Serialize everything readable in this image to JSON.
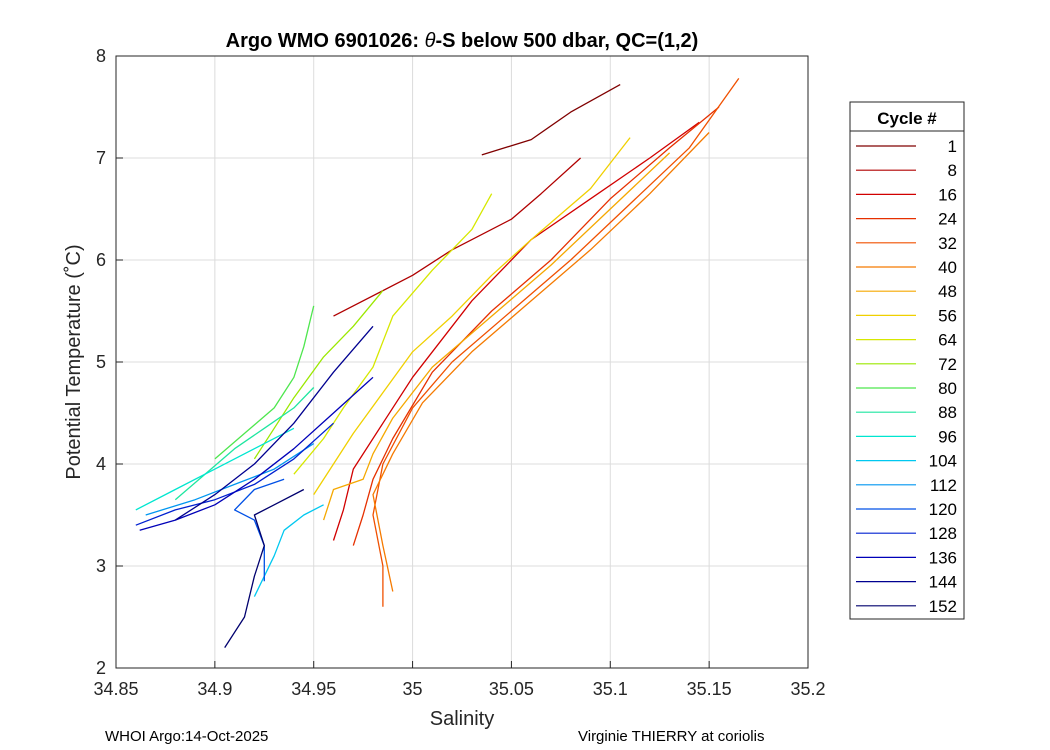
{
  "chart_data": {
    "type": "line",
    "title_prefix": "Argo WMO 6901026: ",
    "title_theta": "θ",
    "title_suffix": "-S below 500 dbar,  QC=(1,2)",
    "xlabel": "Salinity",
    "ylabel": "Potential Temperature (˚C)",
    "xlim": [
      34.85,
      35.2
    ],
    "ylim": [
      2,
      8
    ],
    "xticks": [
      "34.85",
      "34.9",
      "34.95",
      "35",
      "35.05",
      "35.1",
      "35.15",
      "35.2"
    ],
    "yticks": [
      "2",
      "3",
      "4",
      "5",
      "6",
      "7",
      "8"
    ],
    "grid": true,
    "legend": {
      "title": "Cycle #",
      "position": "outside-right",
      "entries": [
        "1",
        "8",
        "16",
        "24",
        "32",
        "40",
        "48",
        "56",
        "64",
        "72",
        "80",
        "88",
        "96",
        "104",
        "112",
        "120",
        "128",
        "136",
        "144",
        "152"
      ]
    },
    "series": [
      {
        "name": "1",
        "color": "#800000",
        "points": [
          [
            35.035,
            7.03
          ],
          [
            35.06,
            7.18
          ],
          [
            35.08,
            7.45
          ],
          [
            35.105,
            7.72
          ]
        ]
      },
      {
        "name": "8",
        "color": "#b00000",
        "points": [
          [
            34.96,
            5.45
          ],
          [
            35.0,
            5.85
          ],
          [
            35.02,
            6.1
          ],
          [
            35.05,
            6.4
          ],
          [
            35.065,
            6.65
          ],
          [
            35.085,
            7.0
          ]
        ]
      },
      {
        "name": "16",
        "color": "#d10000",
        "points": [
          [
            34.96,
            3.25
          ],
          [
            34.965,
            3.55
          ],
          [
            34.97,
            3.95
          ],
          [
            34.985,
            4.4
          ],
          [
            35.0,
            4.85
          ],
          [
            35.03,
            5.6
          ],
          [
            35.06,
            6.2
          ],
          [
            35.09,
            6.6
          ],
          [
            35.12,
            7.0
          ],
          [
            35.145,
            7.35
          ]
        ]
      },
      {
        "name": "24",
        "color": "#e63000",
        "points": [
          [
            34.97,
            3.2
          ],
          [
            34.975,
            3.5
          ],
          [
            34.98,
            3.85
          ],
          [
            34.99,
            4.25
          ],
          [
            35.01,
            4.9
          ],
          [
            35.04,
            5.5
          ],
          [
            35.07,
            6.0
          ],
          [
            35.1,
            6.6
          ],
          [
            35.13,
            7.1
          ],
          [
            35.155,
            7.5
          ]
        ]
      },
      {
        "name": "32",
        "color": "#f05000",
        "points": [
          [
            34.985,
            2.6
          ],
          [
            34.985,
            3.0
          ],
          [
            34.98,
            3.5
          ],
          [
            34.985,
            4.0
          ],
          [
            35.0,
            4.55
          ],
          [
            35.02,
            5.0
          ],
          [
            35.05,
            5.5
          ],
          [
            35.08,
            6.0
          ],
          [
            35.11,
            6.55
          ],
          [
            35.14,
            7.1
          ],
          [
            35.165,
            7.78
          ]
        ]
      },
      {
        "name": "40",
        "color": "#f57a00",
        "points": [
          [
            34.99,
            2.75
          ],
          [
            34.985,
            3.2
          ],
          [
            34.98,
            3.7
          ],
          [
            34.99,
            4.1
          ],
          [
            35.005,
            4.6
          ],
          [
            35.03,
            5.1
          ],
          [
            35.06,
            5.6
          ],
          [
            35.09,
            6.1
          ],
          [
            35.12,
            6.65
          ],
          [
            35.15,
            7.25
          ]
        ]
      },
      {
        "name": "48",
        "color": "#f5a800",
        "points": [
          [
            34.955,
            3.45
          ],
          [
            34.96,
            3.75
          ],
          [
            34.975,
            3.85
          ],
          [
            34.98,
            4.1
          ],
          [
            34.99,
            4.45
          ],
          [
            35.01,
            4.95
          ],
          [
            35.04,
            5.45
          ],
          [
            35.07,
            5.95
          ],
          [
            35.1,
            6.5
          ],
          [
            35.13,
            7.05
          ]
        ]
      },
      {
        "name": "56",
        "color": "#f0d000",
        "points": [
          [
            34.95,
            3.7
          ],
          [
            34.96,
            4.0
          ],
          [
            34.97,
            4.3
          ],
          [
            34.985,
            4.7
          ],
          [
            35.0,
            5.1
          ],
          [
            35.02,
            5.45
          ],
          [
            35.04,
            5.85
          ],
          [
            35.06,
            6.2
          ],
          [
            35.09,
            6.7
          ],
          [
            35.11,
            7.2
          ]
        ]
      },
      {
        "name": "64",
        "color": "#d6e800",
        "points": [
          [
            34.94,
            3.9
          ],
          [
            34.955,
            4.25
          ],
          [
            34.965,
            4.55
          ],
          [
            34.98,
            4.95
          ],
          [
            34.99,
            5.45
          ],
          [
            35.01,
            5.9
          ],
          [
            35.03,
            6.3
          ],
          [
            35.04,
            6.65
          ]
        ]
      },
      {
        "name": "72",
        "color": "#9be800",
        "points": [
          [
            34.92,
            4.05
          ],
          [
            34.93,
            4.35
          ],
          [
            34.94,
            4.65
          ],
          [
            34.955,
            5.05
          ],
          [
            34.97,
            5.35
          ],
          [
            34.985,
            5.7
          ]
        ]
      },
      {
        "name": "80",
        "color": "#4ee64e",
        "points": [
          [
            34.9,
            4.05
          ],
          [
            34.915,
            4.3
          ],
          [
            34.93,
            4.55
          ],
          [
            34.94,
            4.85
          ],
          [
            34.945,
            5.15
          ],
          [
            34.95,
            5.55
          ]
        ]
      },
      {
        "name": "88",
        "color": "#1ee6a0",
        "points": [
          [
            34.88,
            3.65
          ],
          [
            34.895,
            3.9
          ],
          [
            34.91,
            4.15
          ],
          [
            34.925,
            4.35
          ],
          [
            34.94,
            4.55
          ],
          [
            34.95,
            4.75
          ]
        ]
      },
      {
        "name": "96",
        "color": "#00e6d0",
        "points": [
          [
            34.86,
            3.55
          ],
          [
            34.88,
            3.75
          ],
          [
            34.9,
            3.95
          ],
          [
            34.92,
            4.15
          ],
          [
            34.94,
            4.35
          ]
        ]
      },
      {
        "name": "104",
        "color": "#00c8f0",
        "points": [
          [
            34.92,
            2.7
          ],
          [
            34.93,
            3.1
          ],
          [
            34.935,
            3.35
          ],
          [
            34.945,
            3.5
          ],
          [
            34.955,
            3.6
          ]
        ]
      },
      {
        "name": "112",
        "color": "#0096f0",
        "points": [
          [
            34.865,
            3.5
          ],
          [
            34.89,
            3.65
          ],
          [
            34.91,
            3.8
          ],
          [
            34.93,
            3.95
          ],
          [
            34.95,
            4.2
          ]
        ]
      },
      {
        "name": "120",
        "color": "#0050e6",
        "points": [
          [
            34.925,
            2.85
          ],
          [
            34.925,
            3.2
          ],
          [
            34.92,
            3.45
          ],
          [
            34.91,
            3.55
          ],
          [
            34.92,
            3.75
          ],
          [
            34.935,
            3.85
          ]
        ]
      },
      {
        "name": "128",
        "color": "#0020d0",
        "points": [
          [
            34.86,
            3.4
          ],
          [
            34.88,
            3.55
          ],
          [
            34.9,
            3.65
          ],
          [
            34.92,
            3.8
          ],
          [
            34.94,
            4.05
          ],
          [
            34.96,
            4.4
          ]
        ]
      },
      {
        "name": "136",
        "color": "#0000b8",
        "points": [
          [
            34.862,
            3.35
          ],
          [
            34.88,
            3.45
          ],
          [
            34.9,
            3.6
          ],
          [
            34.92,
            3.85
          ],
          [
            34.94,
            4.15
          ],
          [
            34.96,
            4.5
          ],
          [
            34.98,
            4.85
          ]
        ]
      },
      {
        "name": "144",
        "color": "#000090",
        "points": [
          [
            34.88,
            3.45
          ],
          [
            34.9,
            3.7
          ],
          [
            34.92,
            4.0
          ],
          [
            34.94,
            4.4
          ],
          [
            34.96,
            4.9
          ],
          [
            34.98,
            5.35
          ]
        ]
      },
      {
        "name": "152",
        "color": "#00006e",
        "points": [
          [
            34.905,
            2.2
          ],
          [
            34.915,
            2.5
          ],
          [
            34.92,
            2.9
          ],
          [
            34.925,
            3.2
          ],
          [
            34.92,
            3.5
          ],
          [
            34.93,
            3.6
          ],
          [
            34.945,
            3.75
          ]
        ]
      }
    ]
  },
  "footer": {
    "left": "WHOI Argo:14-Oct-2025",
    "right": "Virginie THIERRY at coriolis"
  }
}
